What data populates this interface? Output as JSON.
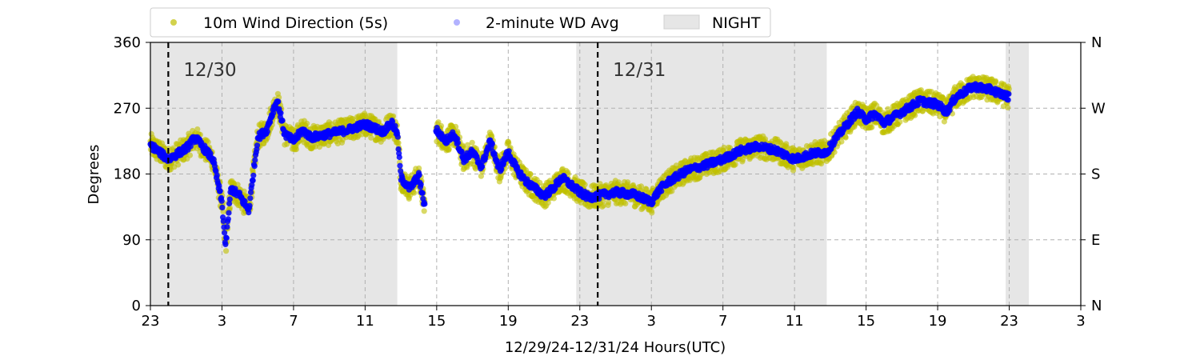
{
  "chart_data": {
    "type": "scatter",
    "xlabel": "12/29/24-12/31/24  Hours(UTC)",
    "ylabel": "Degrees",
    "x_range_hours": [
      23,
      51
    ],
    "ylim": [
      0,
      360
    ],
    "x_ticks": [
      {
        "h": 23,
        "label": "23"
      },
      {
        "h": 27,
        "label": "3"
      },
      {
        "h": 31,
        "label": "7"
      },
      {
        "h": 35,
        "label": "11"
      },
      {
        "h": 39,
        "label": "15"
      },
      {
        "h": 43,
        "label": "19"
      },
      {
        "h": 47,
        "label": "23"
      },
      {
        "h": 51,
        "label": "3"
      },
      {
        "h": 55,
        "label": "7"
      },
      {
        "h": 59,
        "label": "11"
      },
      {
        "h": 63,
        "label": "15"
      },
      {
        "h": 67,
        "label": "19"
      },
      {
        "h": 71,
        "label": "23"
      },
      {
        "h": 75,
        "label": "3"
      }
    ],
    "y_ticks": [
      0,
      90,
      180,
      270,
      360
    ],
    "y_ticks_right": [
      {
        "v": 0,
        "label": "N"
      },
      {
        "v": 90,
        "label": "E"
      },
      {
        "v": 180,
        "label": "S"
      },
      {
        "v": 270,
        "label": "W"
      },
      {
        "v": 360,
        "label": "N"
      }
    ],
    "grid": true,
    "legend_position": "top-left, above plot",
    "night_periods": [
      [
        23,
        36.8
      ],
      [
        46.8,
        60.8
      ],
      [
        70.8,
        72.1
      ]
    ],
    "day_markers": [
      {
        "h": 24,
        "label": "12/30"
      },
      {
        "h": 48,
        "label": "12/31"
      }
    ],
    "series": [
      {
        "name": "10m Wind Direction (5s)",
        "color": "#bfbf00",
        "spread_deg": 16,
        "points": [
          [
            23,
            220
          ],
          [
            24,
            200
          ],
          [
            25,
            215
          ],
          [
            25.5,
            230
          ],
          [
            26,
            215
          ],
          [
            26.5,
            200
          ],
          [
            27,
            140
          ],
          [
            27.2,
            80
          ],
          [
            27.5,
            160
          ],
          [
            28,
            150
          ],
          [
            28.5,
            130
          ],
          [
            29,
            230
          ],
          [
            29.5,
            240
          ],
          [
            29.9,
            270
          ],
          [
            30.1,
            280
          ],
          [
            30.5,
            235
          ],
          [
            31,
            225
          ],
          [
            31.5,
            240
          ],
          [
            32,
            230
          ],
          [
            33,
            235
          ],
          [
            34,
            240
          ],
          [
            35,
            248
          ],
          [
            36,
            238
          ],
          [
            36.5,
            250
          ],
          [
            36.8,
            235
          ],
          [
            37,
            175
          ],
          [
            37.5,
            160
          ],
          [
            38,
            178
          ],
          [
            38.3,
            138
          ],
          [
            39,
            240
          ],
          [
            39.5,
            225
          ],
          [
            40,
            235
          ],
          [
            40.5,
            200
          ],
          [
            41,
            210
          ],
          [
            41.5,
            190
          ],
          [
            42,
            225
          ],
          [
            42.5,
            185
          ],
          [
            43,
            210
          ],
          [
            43.5,
            185
          ],
          [
            44,
            170
          ],
          [
            44.5,
            160
          ],
          [
            45,
            150
          ],
          [
            45.5,
            160
          ],
          [
            46,
            175
          ],
          [
            46.5,
            165
          ],
          [
            47,
            155
          ],
          [
            47.5,
            148
          ],
          [
            48,
            150
          ],
          [
            49,
            155
          ],
          [
            50,
            152
          ],
          [
            51,
            142
          ],
          [
            51.5,
            160
          ],
          [
            52,
            170
          ],
          [
            53,
            185
          ],
          [
            54,
            192
          ],
          [
            55,
            200
          ],
          [
            56,
            212
          ],
          [
            57,
            218
          ],
          [
            58,
            212
          ],
          [
            59,
            200
          ],
          [
            60,
            208
          ],
          [
            60.8,
            210
          ],
          [
            61.2,
            225
          ],
          [
            62,
            250
          ],
          [
            62.5,
            265
          ],
          [
            63,
            255
          ],
          [
            63.5,
            262
          ],
          [
            64,
            250
          ],
          [
            65,
            265
          ],
          [
            66,
            280
          ],
          [
            67,
            275
          ],
          [
            67.5,
            265
          ],
          [
            68,
            285
          ],
          [
            69,
            300
          ],
          [
            70,
            295
          ],
          [
            70.5,
            290
          ],
          [
            71,
            285
          ]
        ]
      },
      {
        "name": "2-minute WD Avg",
        "color": "#0000ff",
        "spread_deg": 5,
        "points": [
          [
            23,
            220
          ],
          [
            24,
            200
          ],
          [
            25,
            215
          ],
          [
            25.5,
            230
          ],
          [
            26,
            215
          ],
          [
            26.5,
            200
          ],
          [
            27,
            140
          ],
          [
            27.2,
            80
          ],
          [
            27.5,
            160
          ],
          [
            28,
            150
          ],
          [
            28.5,
            130
          ],
          [
            29,
            230
          ],
          [
            29.5,
            240
          ],
          [
            29.9,
            270
          ],
          [
            30.1,
            280
          ],
          [
            30.5,
            235
          ],
          [
            31,
            225
          ],
          [
            31.5,
            240
          ],
          [
            32,
            230
          ],
          [
            33,
            235
          ],
          [
            34,
            240
          ],
          [
            35,
            248
          ],
          [
            36,
            238
          ],
          [
            36.5,
            250
          ],
          [
            36.8,
            235
          ],
          [
            37,
            175
          ],
          [
            37.5,
            160
          ],
          [
            38,
            178
          ],
          [
            38.3,
            138
          ],
          [
            39,
            240
          ],
          [
            39.5,
            225
          ],
          [
            40,
            235
          ],
          [
            40.5,
            200
          ],
          [
            41,
            210
          ],
          [
            41.5,
            190
          ],
          [
            42,
            225
          ],
          [
            42.5,
            185
          ],
          [
            43,
            210
          ],
          [
            43.5,
            185
          ],
          [
            44,
            170
          ],
          [
            44.5,
            160
          ],
          [
            45,
            150
          ],
          [
            45.5,
            160
          ],
          [
            46,
            175
          ],
          [
            46.5,
            165
          ],
          [
            47,
            155
          ],
          [
            47.5,
            148
          ],
          [
            48,
            150
          ],
          [
            49,
            155
          ],
          [
            50,
            152
          ],
          [
            51,
            142
          ],
          [
            51.5,
            160
          ],
          [
            52,
            170
          ],
          [
            53,
            185
          ],
          [
            54,
            192
          ],
          [
            55,
            200
          ],
          [
            56,
            212
          ],
          [
            57,
            218
          ],
          [
            58,
            212
          ],
          [
            59,
            200
          ],
          [
            60,
            208
          ],
          [
            60.8,
            210
          ],
          [
            61.2,
            225
          ],
          [
            62,
            250
          ],
          [
            62.5,
            265
          ],
          [
            63,
            255
          ],
          [
            63.5,
            262
          ],
          [
            64,
            250
          ],
          [
            65,
            265
          ],
          [
            66,
            280
          ],
          [
            67,
            275
          ],
          [
            67.5,
            265
          ],
          [
            68,
            285
          ],
          [
            69,
            300
          ],
          [
            70,
            295
          ],
          [
            70.5,
            290
          ],
          [
            71,
            285
          ]
        ]
      }
    ],
    "legend": [
      {
        "label": "10m Wind Direction (5s)",
        "kind": "marker",
        "color": "#bfbf00"
      },
      {
        "label": "2-minute WD Avg",
        "kind": "marker",
        "color": "#0000ff"
      },
      {
        "label": "NIGHT",
        "kind": "patch",
        "color": "#e6e6e6"
      }
    ]
  }
}
